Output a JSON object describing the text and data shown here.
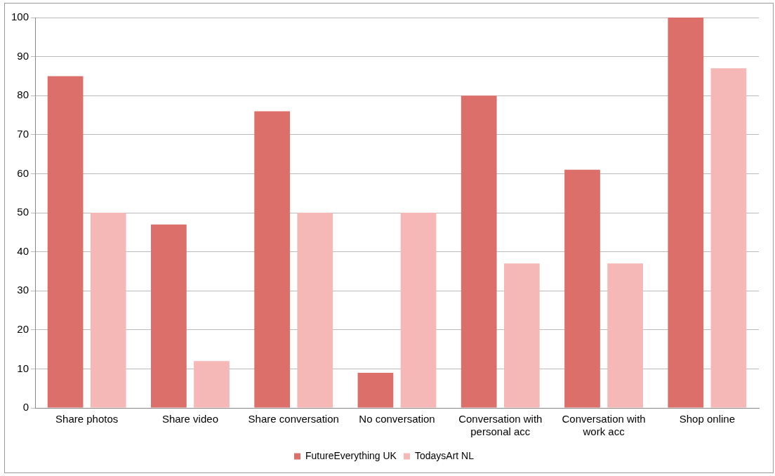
{
  "chart_data": {
    "type": "bar",
    "categories": [
      "Share photos",
      "Share video",
      "Share conversation",
      "No conversation",
      "Conversation with personal acc",
      "Conversation with work acc",
      "Shop online"
    ],
    "series": [
      {
        "name": "FutureEverything UK",
        "color": "#dc6f69",
        "values": [
          85,
          47,
          76,
          9,
          80,
          61,
          100
        ]
      },
      {
        "name": "TodaysArt NL",
        "color": "#f5b8b6",
        "values": [
          50,
          12,
          50,
          50,
          37,
          37,
          87
        ]
      }
    ],
    "ylim": [
      0,
      100
    ],
    "yticks": [
      0,
      10,
      20,
      30,
      40,
      50,
      60,
      70,
      80,
      90,
      100
    ],
    "grid": "y",
    "legend": "bottom"
  }
}
